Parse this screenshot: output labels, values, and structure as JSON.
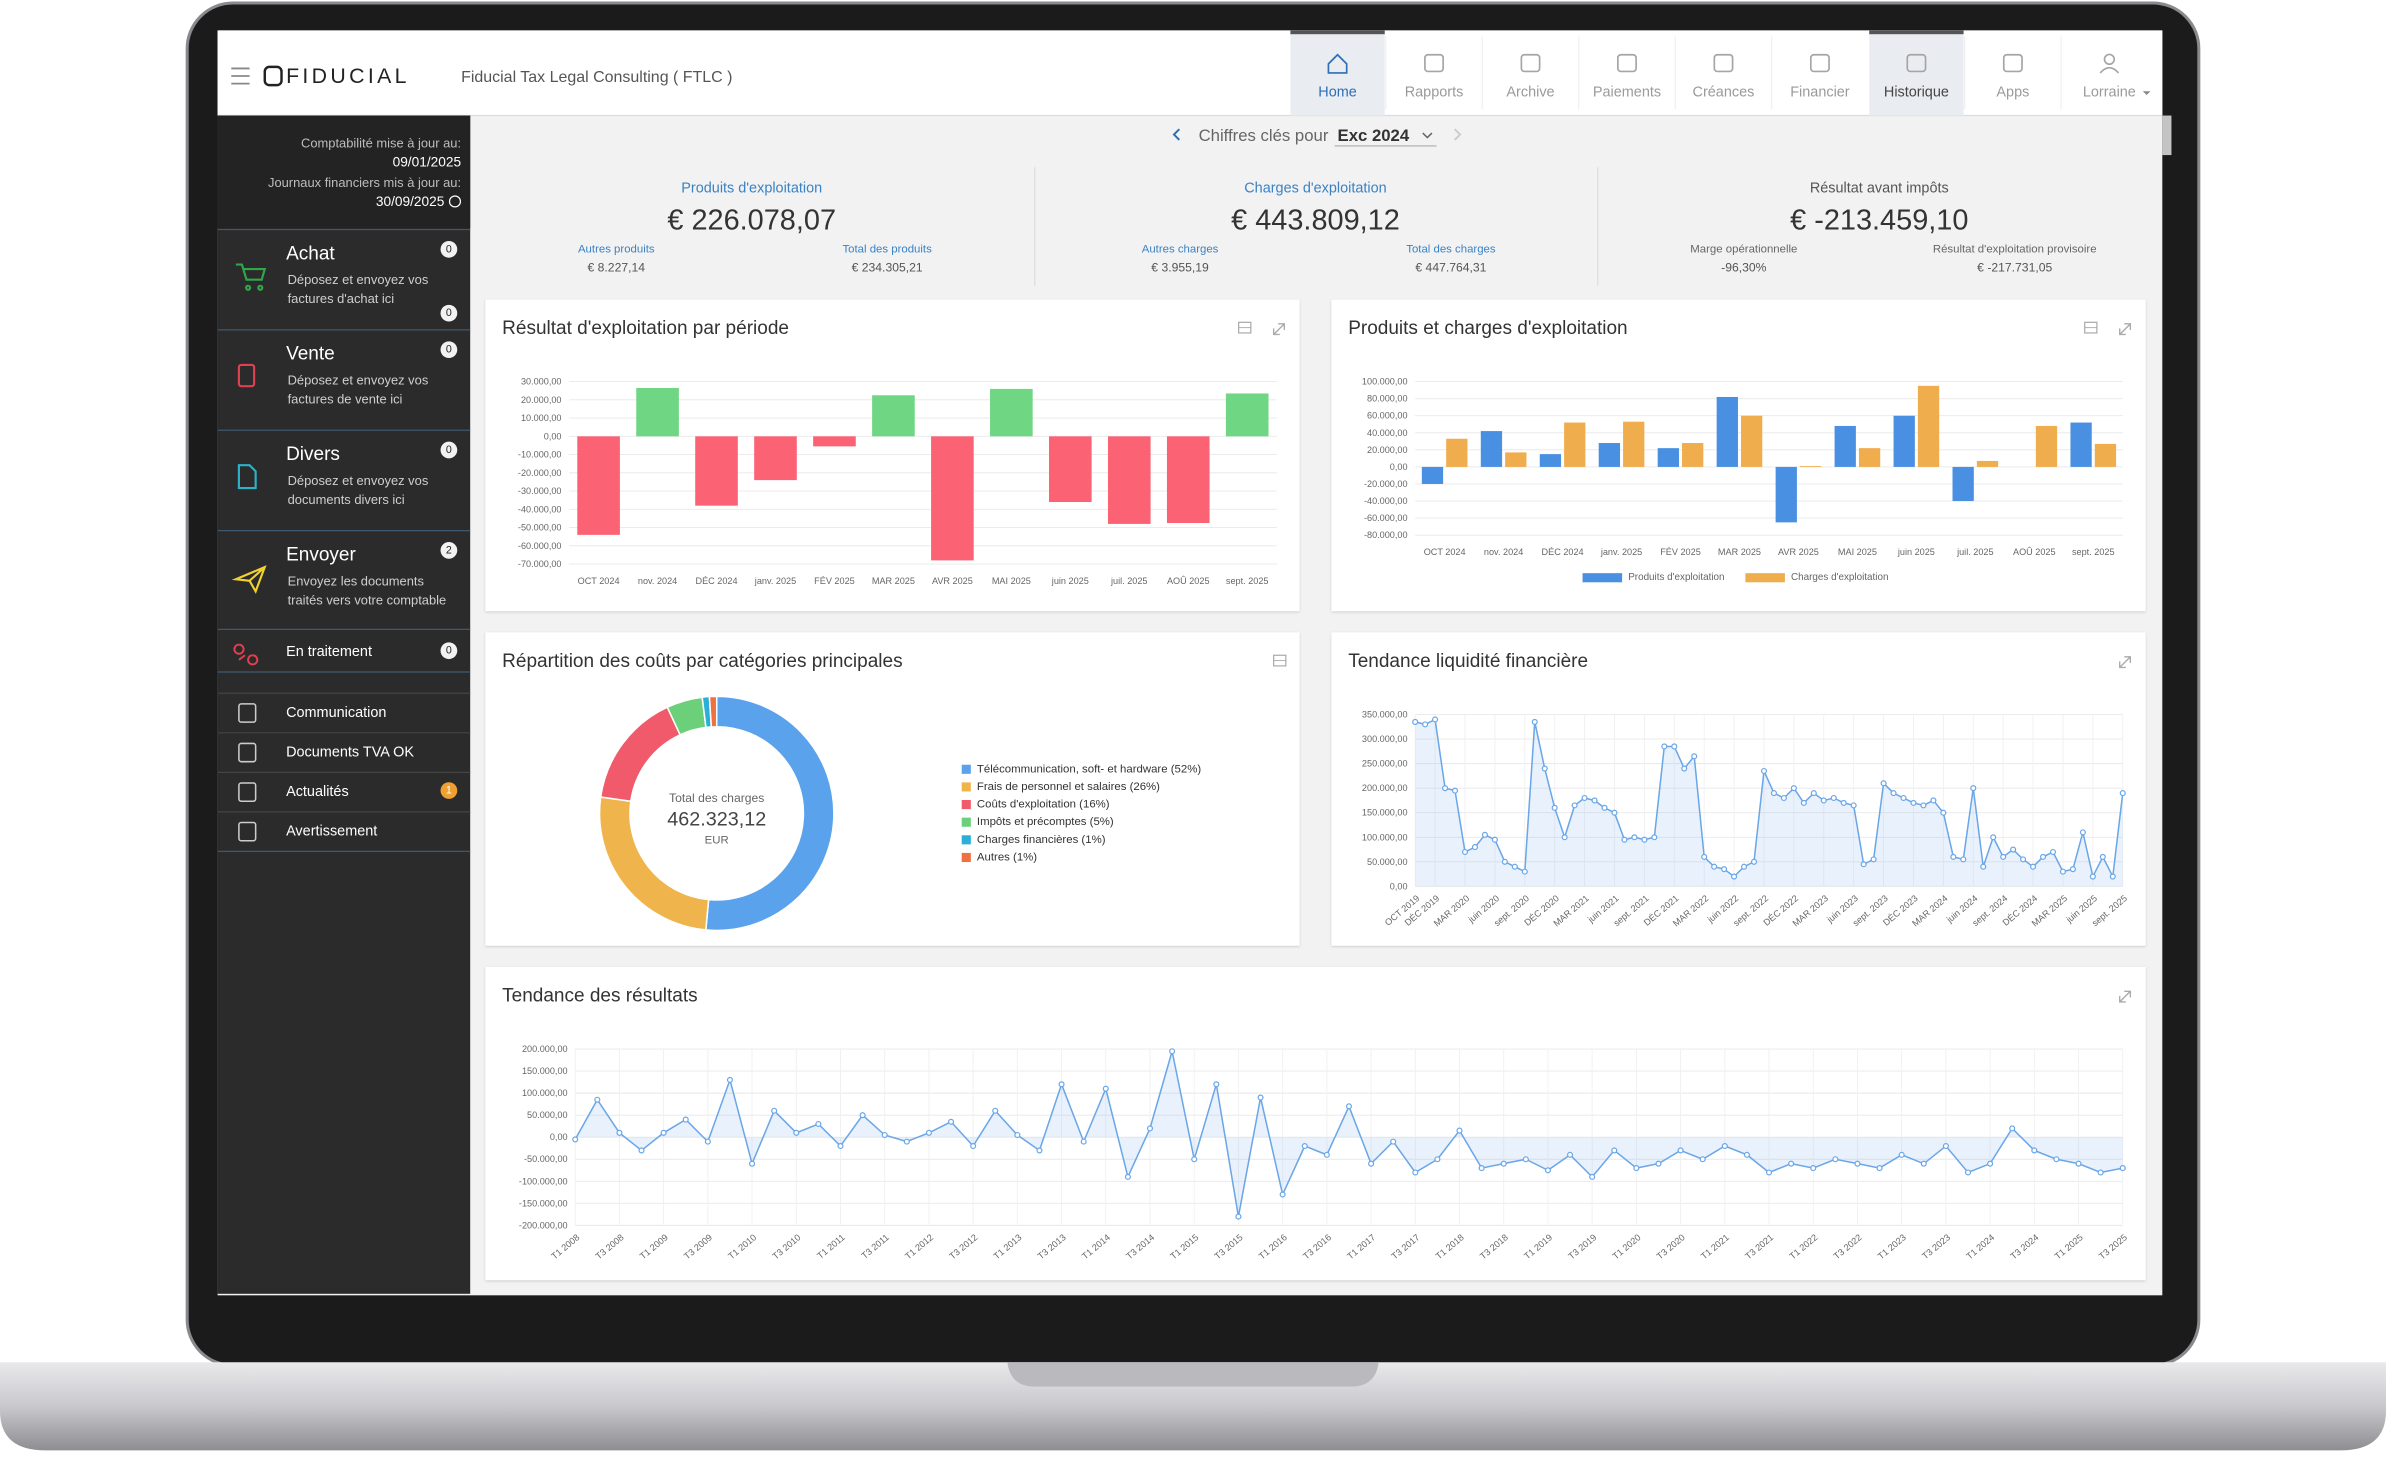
{
  "header": {
    "logo": "FIDUCIAL",
    "company": "Fiducial Tax Legal Consulting ( FTLC )",
    "nav": [
      "Home",
      "Rapports",
      "Archive",
      "Paiements",
      "Créances",
      "Financier",
      "Historique",
      "Apps",
      "Lorraine"
    ]
  },
  "sidebar": {
    "updates": [
      {
        "label": "Comptabilité mise à jour au:",
        "date": "09/01/2025"
      },
      {
        "label": "Journaux financiers mis à jour au:",
        "date": "30/09/2025"
      }
    ],
    "actions": [
      {
        "title": "Achat",
        "description": [
          "Déposez et envoyez vos",
          "factures d'achat ici"
        ],
        "badges": [
          0,
          0
        ]
      },
      {
        "title": "Vente",
        "description": [
          "Déposez et envoyez vos",
          "factures de vente ici"
        ],
        "badges": [
          0
        ]
      },
      {
        "title": "Divers",
        "description": [
          "Déposez et envoyez vos",
          "documents divers ici"
        ],
        "badges": [
          0
        ]
      },
      {
        "title": "Envoyer",
        "description": [
          "Envoyez les documents",
          "traités vers votre comptable"
        ],
        "badges": [
          2
        ]
      }
    ],
    "processing": {
      "label": "En traitement",
      "badge": 0
    },
    "links": [
      {
        "label": "Communication"
      },
      {
        "label": "Documents TVA OK"
      },
      {
        "label": "Actualités",
        "badge": 1
      },
      {
        "label": "Avertissement"
      }
    ]
  },
  "period": {
    "label": "Chiffres clés pour",
    "value": "Exc 2024"
  },
  "kpis": [
    {
      "title": "Produits d'exploitation",
      "value": "€ 226.078,07",
      "details": [
        {
          "label": "Autres produits",
          "value": "€ 8.227,14"
        },
        {
          "label": "Total des produits",
          "value": "€ 234.305,21"
        }
      ]
    },
    {
      "title": "Charges d'exploitation",
      "value": "€ 443.809,12",
      "details": [
        {
          "label": "Autres charges",
          "value": "€ 3.955,19"
        },
        {
          "label": "Total des charges",
          "value": "€ 447.764,31"
        }
      ]
    },
    {
      "title": "Résultat avant impôts",
      "value": "€ -213.459,10",
      "details": [
        {
          "label": "Marge opérationnelle",
          "value": "-96,30%"
        },
        {
          "label": "Résultat d'exploitation provisoire",
          "value": "€ -217.731,05"
        }
      ]
    }
  ],
  "charts": [
    {
      "type": "bar",
      "title": "Résultat d'exploitation par période",
      "categories": [
        "OCT 2024",
        "nov. 2024",
        "DÉC 2024",
        "janv. 2025",
        "FÉV 2025",
        "MAR 2025",
        "AVR 2025",
        "MAI 2025",
        "juin 2025",
        "juil. 2025",
        "AOÛ 2025",
        "sept. 2025"
      ],
      "values": [
        -54000,
        26500,
        -38000,
        -24000,
        -5500,
        22500,
        -68000,
        26000,
        -36000,
        -48000,
        -47500,
        23500
      ],
      "positive_color": "#6fd684",
      "negative_color": "#fb6273",
      "ylim": [
        -70000,
        30000
      ],
      "grid": true,
      "yticks": [
        {
          "value": 30000,
          "label": "30.000,00"
        },
        {
          "value": 20000,
          "label": "20.000,00"
        },
        {
          "value": 10000,
          "label": "10.000,00"
        },
        {
          "value": 0,
          "label": "0,00"
        },
        {
          "value": -10000,
          "label": "-10.000,00"
        },
        {
          "value": -20000,
          "label": "-20.000,00"
        },
        {
          "value": -30000,
          "label": "-30.000,00"
        },
        {
          "value": -40000,
          "label": "-40.000,00"
        },
        {
          "value": -50000,
          "label": "-50.000,00"
        },
        {
          "value": -60000,
          "label": "-60.000,00"
        },
        {
          "value": -70000,
          "label": "-70.000,00"
        }
      ]
    },
    {
      "type": "bar",
      "title": "Produits et charges d'exploitation",
      "categories": [
        "OCT 2024",
        "nov. 2024",
        "DÉC 2024",
        "janv. 2025",
        "FÉV 2025",
        "MAR 2025",
        "AVR 2025",
        "MAI 2025",
        "juin 2025",
        "juil. 2025",
        "AOÛ 2025",
        "sept. 2025"
      ],
      "series": [
        {
          "name": "Produits d'exploitation",
          "color": "#4a90e2",
          "values": [
            -20000,
            42000,
            15000,
            28000,
            22000,
            82000,
            -65000,
            48000,
            60000,
            -40000,
            0,
            52000
          ]
        },
        {
          "name": "Charges d'exploitation",
          "color": "#f0ad4e",
          "values": [
            33000,
            17000,
            52000,
            53000,
            28000,
            60000,
            1000,
            22000,
            95000,
            7000,
            48000,
            27000
          ]
        }
      ],
      "ylim": [
        -80000,
        100000
      ],
      "grid": true,
      "legend": "bottom",
      "yticks": [
        {
          "value": 100000,
          "label": "100.000,00"
        },
        {
          "value": 80000,
          "label": "80.000,00"
        },
        {
          "value": 60000,
          "label": "60.000,00"
        },
        {
          "value": 40000,
          "label": "40.000,00"
        },
        {
          "value": 20000,
          "label": "20.000,00"
        },
        {
          "value": 0,
          "label": "0,00"
        },
        {
          "value": -20000,
          "label": "-20.000,00"
        },
        {
          "value": -40000,
          "label": "-40.000,00"
        },
        {
          "value": -60000,
          "label": "-60.000,00"
        },
        {
          "value": -80000,
          "label": "-80.000,00"
        }
      ]
    },
    {
      "type": "donut",
      "title": "Répartition des coûts par catégories principales",
      "center_label": "Total des charges",
      "center_value": "462.323,12",
      "center_unit": "EUR",
      "categories": [
        "Télécommunication, soft- et hardware (52%)",
        "Frais de personnel et salaires (26%)",
        "Coûts d'exploitation (16%)",
        "Impôts et précomptes (5%)",
        "Charges financières (1%)",
        "Autres (1%)"
      ],
      "values": [
        52,
        26,
        16,
        5,
        1,
        1
      ],
      "colors": [
        "#5aa2ec",
        "#f0b44c",
        "#f05a6a",
        "#6ccf7a",
        "#2ab0d8",
        "#f07040"
      ]
    },
    {
      "type": "line",
      "title": "Tendance liquidité financière",
      "color": "#6aa6e8",
      "area": true,
      "grid": true,
      "categories": [
        "OCT 2019",
        null,
        "DÉC 2019",
        null,
        null,
        "MAR 2020",
        null,
        null,
        "juin 2020",
        null,
        null,
        "sept. 2020",
        null,
        null,
        "DÉC 2020",
        null,
        null,
        "MAR 2021",
        null,
        null,
        "juin 2021",
        null,
        null,
        "sept. 2021",
        null,
        null,
        "DÉC 2021",
        null,
        null,
        "MAR 2022",
        null,
        null,
        "juin 2022",
        null,
        null,
        "sept. 2022",
        null,
        null,
        "DÉC 2022",
        null,
        null,
        "MAR 2023",
        null,
        null,
        "juin 2023",
        null,
        null,
        "sept. 2023",
        null,
        null,
        "DÉC 2023",
        null,
        null,
        "MAR 2024",
        null,
        null,
        "juin 2024",
        null,
        null,
        "sept. 2024",
        null,
        null,
        "DÉC 2024",
        null,
        null,
        "MAR 2025",
        null,
        null,
        "juin 2025",
        null,
        null,
        "sept. 2025"
      ],
      "values": [
        335000,
        330000,
        340000,
        200000,
        195000,
        70000,
        80000,
        105000,
        95000,
        50000,
        40000,
        30000,
        335000,
        240000,
        160000,
        100000,
        165000,
        180000,
        175000,
        160000,
        150000,
        95000,
        100000,
        95000,
        100000,
        285000,
        285000,
        240000,
        265000,
        60000,
        40000,
        35000,
        20000,
        40000,
        50000,
        235000,
        190000,
        180000,
        200000,
        170000,
        190000,
        175000,
        180000,
        170000,
        165000,
        45000,
        55000,
        210000,
        190000,
        180000,
        170000,
        165000,
        175000,
        150000,
        60000,
        55000,
        200000,
        40000,
        100000,
        60000,
        75000,
        55000,
        40000,
        60000,
        70000,
        30000,
        35000,
        110000,
        20000,
        60000,
        20000,
        190000
      ],
      "ylim": [
        0,
        350000
      ],
      "yticks": [
        {
          "value": 350000,
          "label": "350.000,00"
        },
        {
          "value": 300000,
          "label": "300.000,00"
        },
        {
          "value": 250000,
          "label": "250.000,00"
        },
        {
          "value": 200000,
          "label": "200.000,00"
        },
        {
          "value": 150000,
          "label": "150.000,00"
        },
        {
          "value": 100000,
          "label": "100.000,00"
        },
        {
          "value": 50000,
          "label": "50.000,00"
        },
        {
          "value": 0,
          "label": "0,00"
        }
      ]
    },
    {
      "type": "line",
      "title": "Tendance des résultats",
      "color": "#6aa6e8",
      "area": true,
      "grid": true,
      "categories": [
        "T1 2008",
        null,
        "T3 2008",
        null,
        "T1 2009",
        null,
        "T3 2009",
        null,
        "T1 2010",
        null,
        "T3 2010",
        null,
        "T1 2011",
        null,
        "T3 2011",
        null,
        "T1 2012",
        null,
        "T3 2012",
        null,
        "T1 2013",
        null,
        "T3 2013",
        null,
        "T1 2014",
        null,
        "T3 2014",
        null,
        "T1 2015",
        null,
        "T3 2015",
        null,
        "T1 2016",
        null,
        "T3 2016",
        null,
        "T1 2017",
        null,
        "T3 2017",
        null,
        "T1 2018",
        null,
        "T3 2018",
        null,
        "T1 2019",
        null,
        "T3 2019",
        null,
        "T1 2020",
        null,
        "T3 2020",
        null,
        "T1 2021",
        null,
        "T3 2021",
        null,
        "T1 2022",
        null,
        "T3 2022",
        null,
        "T1 2023",
        null,
        "T3 2023",
        null,
        "T1 2024",
        null,
        "T3 2024",
        null,
        "T1 2025",
        null,
        "T3 2025"
      ],
      "values": [
        -5000,
        85000,
        10000,
        -30000,
        10000,
        40000,
        -10000,
        130000,
        -60000,
        60000,
        10000,
        30000,
        -20000,
        50000,
        5000,
        -10000,
        10000,
        35000,
        -20000,
        60000,
        5000,
        -30000,
        120000,
        -10000,
        110000,
        -90000,
        20000,
        195000,
        -50000,
        120000,
        -180000,
        90000,
        -130000,
        -20000,
        -40000,
        70000,
        -60000,
        -10000,
        -80000,
        -50000,
        15000,
        -70000,
        -60000,
        -50000,
        -75000,
        -40000,
        -90000,
        -30000,
        -70000,
        -60000,
        -30000,
        -50000,
        -20000,
        -40000,
        -80000,
        -60000,
        -70000,
        -50000,
        -60000,
        -70000,
        -40000,
        -60000,
        -20000,
        -80000,
        -60000,
        20000,
        -30000,
        -50000,
        -60000,
        -80000,
        -70000
      ],
      "ylim": [
        -200000,
        200000
      ],
      "yticks": [
        {
          "value": 200000,
          "label": "200.000,00"
        },
        {
          "value": 150000,
          "label": "150.000,00"
        },
        {
          "value": 100000,
          "label": "100.000,00"
        },
        {
          "value": 50000,
          "label": "50.000,00"
        },
        {
          "value": 0,
          "label": "0,00"
        },
        {
          "value": -50000,
          "label": "-50.000,00"
        },
        {
          "value": -100000,
          "label": "-100.000,00"
        },
        {
          "value": -150000,
          "label": "-150.000,00"
        },
        {
          "value": -200000,
          "label": "-200.000,00"
        }
      ]
    }
  ]
}
